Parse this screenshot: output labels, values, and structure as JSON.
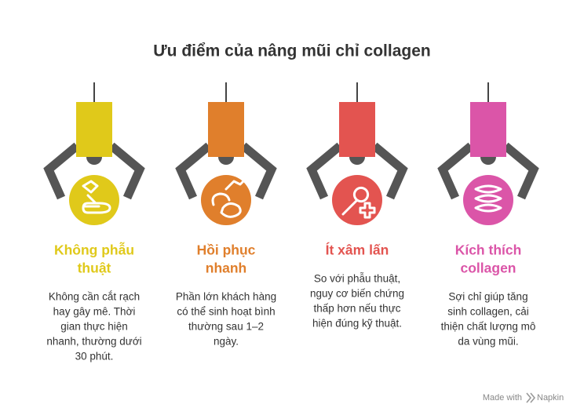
{
  "title": "Ưu điểm của nâng mũi chỉ collagen",
  "items": [
    {
      "color": "#e0c91a",
      "heading": [
        "Không phẫu",
        "thuật"
      ],
      "description": [
        "Không cần cắt rạch",
        "hay gây mê. Thời",
        "gian thực hiện",
        "nhanh, thường dưới",
        "30 phút."
      ]
    },
    {
      "color": "#e07f2c",
      "heading": [
        "Hồi phục",
        "nhanh"
      ],
      "description": [
        "Phần lớn khách hàng",
        "có thể sinh hoạt bình",
        "thường sau 1–2",
        "ngày."
      ]
    },
    {
      "color": "#e35450",
      "heading": [
        "Ít xâm lấn"
      ],
      "description": [
        "So với phẫu thuật,",
        "nguy cơ biến chứng",
        "thấp hơn nếu thực",
        "hiện đúng kỹ thuật."
      ]
    },
    {
      "color": "#db55a8",
      "heading": [
        "Kích thích",
        "collagen"
      ],
      "description": [
        "Sợi chỉ giúp tăng",
        "sinh collagen, cải",
        "thiện chất lượng mô",
        "da vùng mũi."
      ]
    }
  ],
  "footer": {
    "prefix": "Made with",
    "brand": "Napkin"
  }
}
